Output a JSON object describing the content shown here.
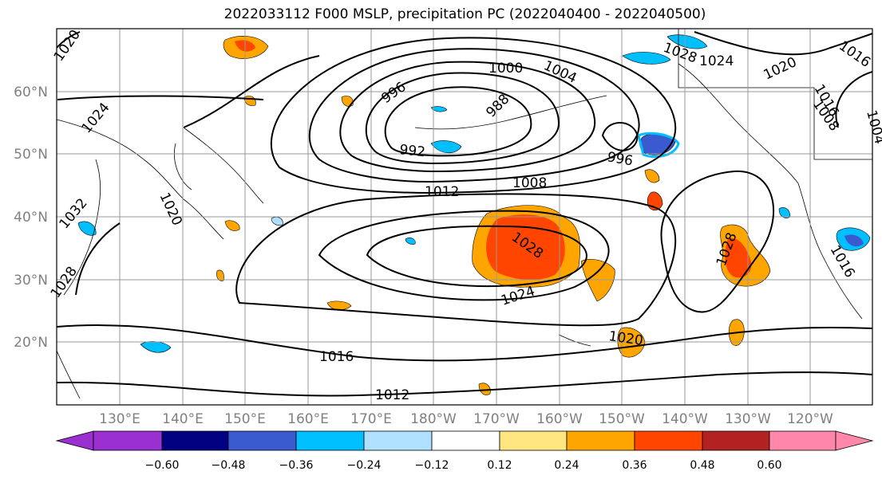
{
  "title": "2022033112 F000 MSLP, precipitation PC (2022040400 - 2022040500)",
  "axes": {
    "lat_labels": [
      "60°N",
      "50°N",
      "40°N",
      "30°N",
      "20°N"
    ],
    "lon_labels": [
      "130°E",
      "140°E",
      "150°E",
      "160°E",
      "170°E",
      "180°W",
      "170°W",
      "160°W",
      "150°W",
      "140°W",
      "130°W",
      "120°W"
    ]
  },
  "contour_labels": [
    "1020",
    "1024",
    "1020",
    "1032",
    "1028",
    "1000",
    "1004",
    "996",
    "988",
    "992",
    "996",
    "1012",
    "1008",
    "1028",
    "1024",
    "1020",
    "1016",
    "1012",
    "1028",
    "1024",
    "1020",
    "1016",
    "1008",
    "1004",
    "1016",
    "1028",
    "1016"
  ],
  "colorbar": {
    "ticks": [
      "−0.60",
      "−0.48",
      "−0.36",
      "−0.24",
      "−0.12",
      "0.12",
      "0.24",
      "0.36",
      "0.48",
      "0.60"
    ],
    "colors": [
      "#9b30d0",
      "#000080",
      "#3a5bd0",
      "#00bfff",
      "#b0e0ff",
      "#ffffff",
      "#ffe680",
      "#ffa500",
      "#ff4500",
      "#b22222",
      "#ff88aa"
    ]
  },
  "colors": {
    "grid": "#999999",
    "axis_text": "#808080",
    "contour": "#000000"
  }
}
